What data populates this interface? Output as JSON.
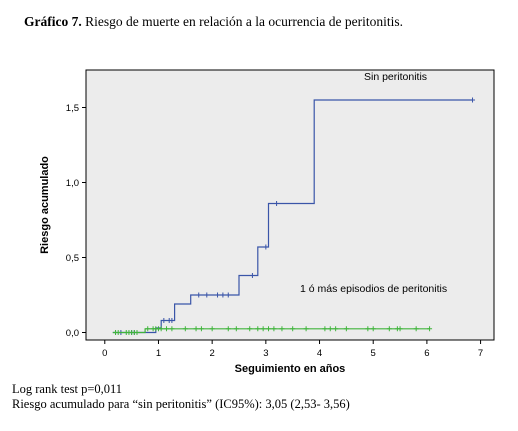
{
  "figure": {
    "label": "Gráfico 7.",
    "caption": "Riesgo de muerte en relación a la ocurrencia de peritonitis."
  },
  "notes": {
    "logrank": "Log rank test p=0,011",
    "risk": "Riesgo acumulado para “sin peritonitis” (IC95%): 3,05 (2,53- 3,56)"
  },
  "colors": {
    "plot_bg": "#ececec",
    "series_sin": "#3a55a8",
    "series_con": "#40b43c"
  },
  "chart_data": {
    "type": "line",
    "xlabel": "Seguimiento en años",
    "ylabel": "Riesgo acumulado",
    "xlim": [
      -0.35,
      7.25
    ],
    "ylim": [
      -0.05,
      1.75
    ],
    "x_ticks": [
      0,
      1,
      2,
      3,
      4,
      5,
      6,
      7
    ],
    "x_tick_labels": [
      "0",
      "1",
      "2",
      "3",
      "4",
      "5",
      "6",
      "7"
    ],
    "y_ticks": [
      0,
      0.5,
      1.0,
      1.5
    ],
    "y_tick_labels": [
      "0,0",
      "0,5",
      "1,0",
      "1,5"
    ],
    "grid": false,
    "series": [
      {
        "name": "Sin peritonitis",
        "step": [
          [
            0.15,
            0
          ],
          [
            0.95,
            0
          ],
          [
            0.95,
            0.03
          ],
          [
            1.05,
            0.03
          ],
          [
            1.05,
            0.08
          ],
          [
            1.3,
            0.08
          ],
          [
            1.3,
            0.19
          ],
          [
            1.6,
            0.19
          ],
          [
            1.6,
            0.25
          ],
          [
            2.5,
            0.25
          ],
          [
            2.5,
            0.38
          ],
          [
            2.85,
            0.38
          ],
          [
            2.85,
            0.57
          ],
          [
            3.05,
            0.57
          ],
          [
            3.05,
            0.86
          ],
          [
            3.9,
            0.86
          ],
          [
            3.9,
            1.55
          ],
          [
            6.85,
            1.55
          ]
        ],
        "censored": [
          0.2,
          0.3,
          0.5,
          0.55,
          0.6,
          1.1,
          1.2,
          1.25,
          1.75,
          1.9,
          2.1,
          2.2,
          2.3,
          2.75,
          3.0,
          3.2,
          6.85
        ]
      },
      {
        "name": "1 ó más episodios de peritonitis",
        "step": [
          [
            0.15,
            0
          ],
          [
            0.75,
            0
          ],
          [
            0.75,
            0.025
          ],
          [
            6.05,
            0.025
          ]
        ],
        "censored": [
          0.2,
          0.25,
          0.4,
          0.45,
          0.5,
          0.55,
          0.6,
          0.8,
          0.9,
          0.95,
          1.0,
          1.05,
          1.15,
          1.25,
          1.5,
          1.7,
          1.8,
          2.0,
          2.3,
          2.45,
          2.7,
          2.85,
          2.95,
          3.05,
          3.15,
          3.3,
          3.5,
          3.75,
          4.1,
          4.2,
          4.3,
          4.5,
          4.9,
          5.0,
          5.3,
          5.45,
          5.5,
          5.8,
          6.05
        ]
      }
    ],
    "series_label_positions": [
      "top-right",
      "center-right"
    ]
  }
}
